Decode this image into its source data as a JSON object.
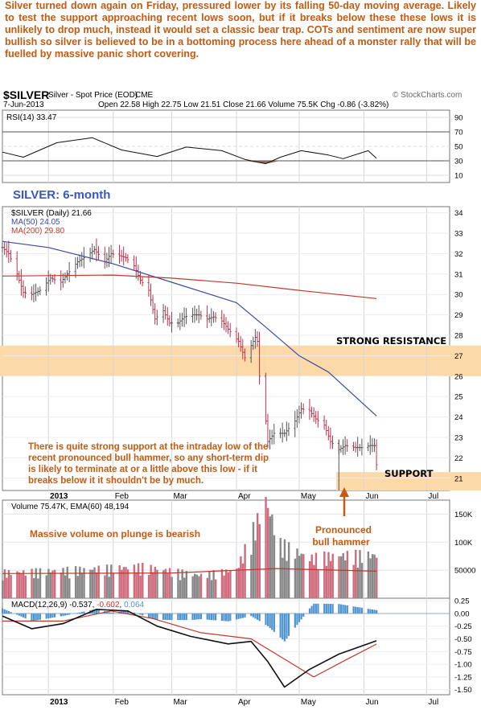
{
  "commentary": "Silver turned down again on Friday, pressured lower by its falling 50-day moving average. Likely to test the support approaching recent lows soon, but if it breaks below these these lows it is unlikely to drop much, instead it would set a classic bear trap. COTs and sentiment are now super bullish so silver is believed to be in a bottoming process here ahead of a monster rally that will be fuelled by massive panic short covering.",
  "header": {
    "symbol": "$SILVER",
    "description": "Silver - Spot Price (EOD)",
    "exchange": "CME",
    "watermark": "© StockCharts.com",
    "date": "7-Jun-2013",
    "ohlc": "Open 22.58  High 22.75  Low 21.51  Close 21.66  Volume 75.5K  Chg -0.86 (-3.82%)"
  },
  "panels": {
    "rsi": {
      "label": "RSI(14) 33.47",
      "ticks": [
        "90",
        "70",
        "50",
        "30",
        "10"
      ]
    },
    "price": {
      "overlay_title": "SILVER: 6-month",
      "legend": [
        "$SILVER (Daily) 21.66",
        "MA(50) 24.05",
        "MA(200) 29.80"
      ],
      "ticks": [
        "34",
        "33",
        "32",
        "31",
        "30",
        "29",
        "28",
        "27",
        "26",
        "25",
        "24",
        "23",
        "22",
        "21"
      ]
    },
    "volume": {
      "label": "Volume 75.47K, EMA(60) 48,194",
      "ticks": [
        "150K",
        "100K",
        "50000"
      ]
    },
    "macd": {
      "label_prefix": "MACD(12,26,9) ",
      "macd_value": "-0.537",
      "signal_value": "-0.602",
      "hist_value": "0.064",
      "ticks": [
        "0.25",
        "0.00",
        "-0.25",
        "-0.50",
        "-0.75",
        "-1.00",
        "-1.25",
        "-1.50"
      ]
    }
  },
  "months": [
    "2013",
    "Feb",
    "Mar",
    "Apr",
    "May",
    "Jun",
    "Jul"
  ],
  "annotations": {
    "resistance": "STRONG RESISTANCE",
    "support": "SUPPORT",
    "support_note": [
      "There is quite strong support at the intraday low of the",
      "recent pronounced bull hammer, so any short-term dip",
      "is likely to terminate at or a little above this low - if it",
      "breaks below it it shouldn't be by much."
    ],
    "volume_note": "Massive volume on plunge is bearish",
    "hammer_note": [
      "Pronounced",
      "bull hammer"
    ]
  },
  "colors": {
    "annotation": "#c55a11",
    "band": "#fbd9a8",
    "ma50": "#3b4ba0",
    "ma200": "#c0392b",
    "up": "#555555",
    "down": "#c0304a",
    "title": "#3a55c8",
    "hist": "#4d93cf"
  },
  "chart_data": {
    "type": "line",
    "title": "SILVER: 6-month",
    "x_axis": {
      "start": "2012-12-10",
      "end": "2013-07-12",
      "labels": [
        "2013",
        "Feb",
        "Mar",
        "Apr",
        "May",
        "Jun",
        "Jul"
      ]
    },
    "price": {
      "ylim": [
        20.4,
        34.3
      ],
      "series": [
        {
          "name": "$SILVER (Daily) close",
          "points": [
            [
              "2012-12-10",
              32.3
            ],
            [
              "2012-12-13",
              32.0
            ],
            [
              "2012-12-17",
              31.0
            ],
            [
              "2012-12-20",
              30.1
            ],
            [
              "2012-12-24",
              30.0
            ],
            [
              "2012-12-28",
              30.2
            ],
            [
              "2013-01-02",
              30.8
            ],
            [
              "2013-01-07",
              30.6
            ],
            [
              "2013-01-10",
              31.0
            ],
            [
              "2013-01-15",
              31.6
            ],
            [
              "2013-01-18",
              31.8
            ],
            [
              "2013-01-23",
              32.2
            ],
            [
              "2013-01-28",
              31.6
            ],
            [
              "2013-01-31",
              32.0
            ],
            [
              "2013-02-04",
              31.9
            ],
            [
              "2013-02-07",
              31.8
            ],
            [
              "2013-02-11",
              31.4
            ],
            [
              "2013-02-14",
              30.7
            ],
            [
              "2013-02-18",
              30.2
            ],
            [
              "2013-02-21",
              28.8
            ],
            [
              "2013-02-25",
              29.2
            ],
            [
              "2013-02-28",
              28.6
            ],
            [
              "2013-03-04",
              28.6
            ],
            [
              "2013-03-07",
              28.9
            ],
            [
              "2013-03-11",
              29.0
            ],
            [
              "2013-03-14",
              29.0
            ],
            [
              "2013-03-18",
              28.8
            ],
            [
              "2013-03-21",
              28.9
            ],
            [
              "2013-03-25",
              28.7
            ],
            [
              "2013-03-28",
              28.3
            ],
            [
              "2013-04-02",
              27.7
            ],
            [
              "2013-04-05",
              26.9
            ],
            [
              "2013-04-08",
              27.5
            ],
            [
              "2013-04-10",
              27.9
            ],
            [
              "2013-04-11",
              27.7
            ],
            [
              "2013-04-12",
              26.0
            ],
            [
              "2013-04-15",
              23.8
            ],
            [
              "2013-04-16",
              22.8
            ],
            [
              "2013-04-19",
              23.2
            ],
            [
              "2013-04-24",
              23.2
            ],
            [
              "2013-04-29",
              23.8
            ],
            [
              "2013-05-02",
              24.4
            ],
            [
              "2013-05-06",
              24.3
            ],
            [
              "2013-05-09",
              23.9
            ],
            [
              "2013-05-13",
              23.6
            ],
            [
              "2013-05-16",
              22.8
            ],
            [
              "2013-05-20",
              22.4
            ],
            [
              "2013-05-23",
              22.6
            ],
            [
              "2013-05-28",
              22.5
            ],
            [
              "2013-05-31",
              22.5
            ],
            [
              "2013-06-04",
              22.6
            ],
            [
              "2013-06-06",
              22.6
            ],
            [
              "2013-06-07",
              21.66
            ]
          ]
        },
        {
          "name": "MA(50)",
          "points": [
            [
              "2012-12-10",
              32.6
            ],
            [
              "2013-01-01",
              32.3
            ],
            [
              "2013-02-01",
              31.5
            ],
            [
              "2013-03-01",
              30.6
            ],
            [
              "2013-04-01",
              29.6
            ],
            [
              "2013-04-15",
              28.4
            ],
            [
              "2013-05-01",
              27.0
            ],
            [
              "2013-05-15",
              26.2
            ],
            [
              "2013-06-07",
              24.05
            ]
          ]
        },
        {
          "name": "MA(200)",
          "points": [
            [
              "2012-12-10",
              30.9
            ],
            [
              "2013-02-01",
              30.95
            ],
            [
              "2013-03-01",
              30.8
            ],
            [
              "2013-04-01",
              30.55
            ],
            [
              "2013-05-01",
              30.2
            ],
            [
              "2013-06-07",
              29.8
            ]
          ]
        }
      ],
      "bands": [
        {
          "label": "STRONG RESISTANCE",
          "y": [
            26.0,
            27.5
          ]
        },
        {
          "label": "SUPPORT",
          "y": [
            20.4,
            21.3
          ]
        }
      ]
    },
    "rsi": {
      "ylim": [
        0,
        100
      ],
      "points": [
        [
          "2012-12-10",
          42
        ],
        [
          "2012-12-20",
          35
        ],
        [
          "2013-01-05",
          55
        ],
        [
          "2013-01-22",
          62
        ],
        [
          "2013-02-05",
          45
        ],
        [
          "2013-02-22",
          36
        ],
        [
          "2013-03-08",
          49
        ],
        [
          "2013-03-25",
          44
        ],
        [
          "2013-04-05",
          32
        ],
        [
          "2013-04-15",
          26
        ],
        [
          "2013-04-22",
          35
        ],
        [
          "2013-05-02",
          44
        ],
        [
          "2013-05-15",
          38
        ],
        [
          "2013-05-22",
          33
        ],
        [
          "2013-06-03",
          44
        ],
        [
          "2013-06-07",
          33.47
        ]
      ]
    },
    "volume": {
      "ylim": [
        0,
        175000
      ],
      "points": [
        [
          "2012-12-15",
          45000
        ],
        [
          "2013-01-15",
          50000
        ],
        [
          "2013-02-15",
          55000
        ],
        [
          "2013-03-15",
          40000
        ],
        [
          "2013-04-01",
          50000
        ],
        [
          "2013-04-15",
          170000
        ],
        [
          "2013-04-22",
          95000
        ],
        [
          "2013-05-06",
          70000
        ],
        [
          "2013-05-20",
          75000
        ],
        [
          "2013-06-07",
          75470
        ]
      ]
    },
    "macd": {
      "ylim": [
        -1.6,
        0.3
      ],
      "series": [
        {
          "name": "MACD(12,26,9)",
          "points": [
            [
              "2012-12-10",
              -0.05
            ],
            [
              "2012-12-24",
              -0.3
            ],
            [
              "2013-01-08",
              -0.2
            ],
            [
              "2013-01-24",
              0.08
            ],
            [
              "2013-02-08",
              0.05
            ],
            [
              "2013-02-22",
              -0.25
            ],
            [
              "2013-03-10",
              -0.45
            ],
            [
              "2013-03-28",
              -0.6
            ],
            [
              "2013-04-08",
              -0.55
            ],
            [
              "2013-04-16",
              -0.95
            ],
            [
              "2013-04-24",
              -1.45
            ],
            [
              "2013-05-06",
              -1.1
            ],
            [
              "2013-05-20",
              -0.8
            ],
            [
              "2013-06-07",
              -0.537
            ]
          ]
        },
        {
          "name": "signal",
          "points": [
            [
              "2012-12-10",
              -0.15
            ],
            [
              "2013-01-08",
              -0.15
            ],
            [
              "2013-01-31",
              0.05
            ],
            [
              "2013-02-20",
              -0.1
            ],
            [
              "2013-03-15",
              -0.38
            ],
            [
              "2013-04-08",
              -0.5
            ],
            [
              "2013-04-24",
              -0.9
            ],
            [
              "2013-05-08",
              -1.25
            ],
            [
              "2013-05-24",
              -0.9
            ],
            [
              "2013-06-07",
              -0.602
            ]
          ]
        }
      ]
    }
  }
}
